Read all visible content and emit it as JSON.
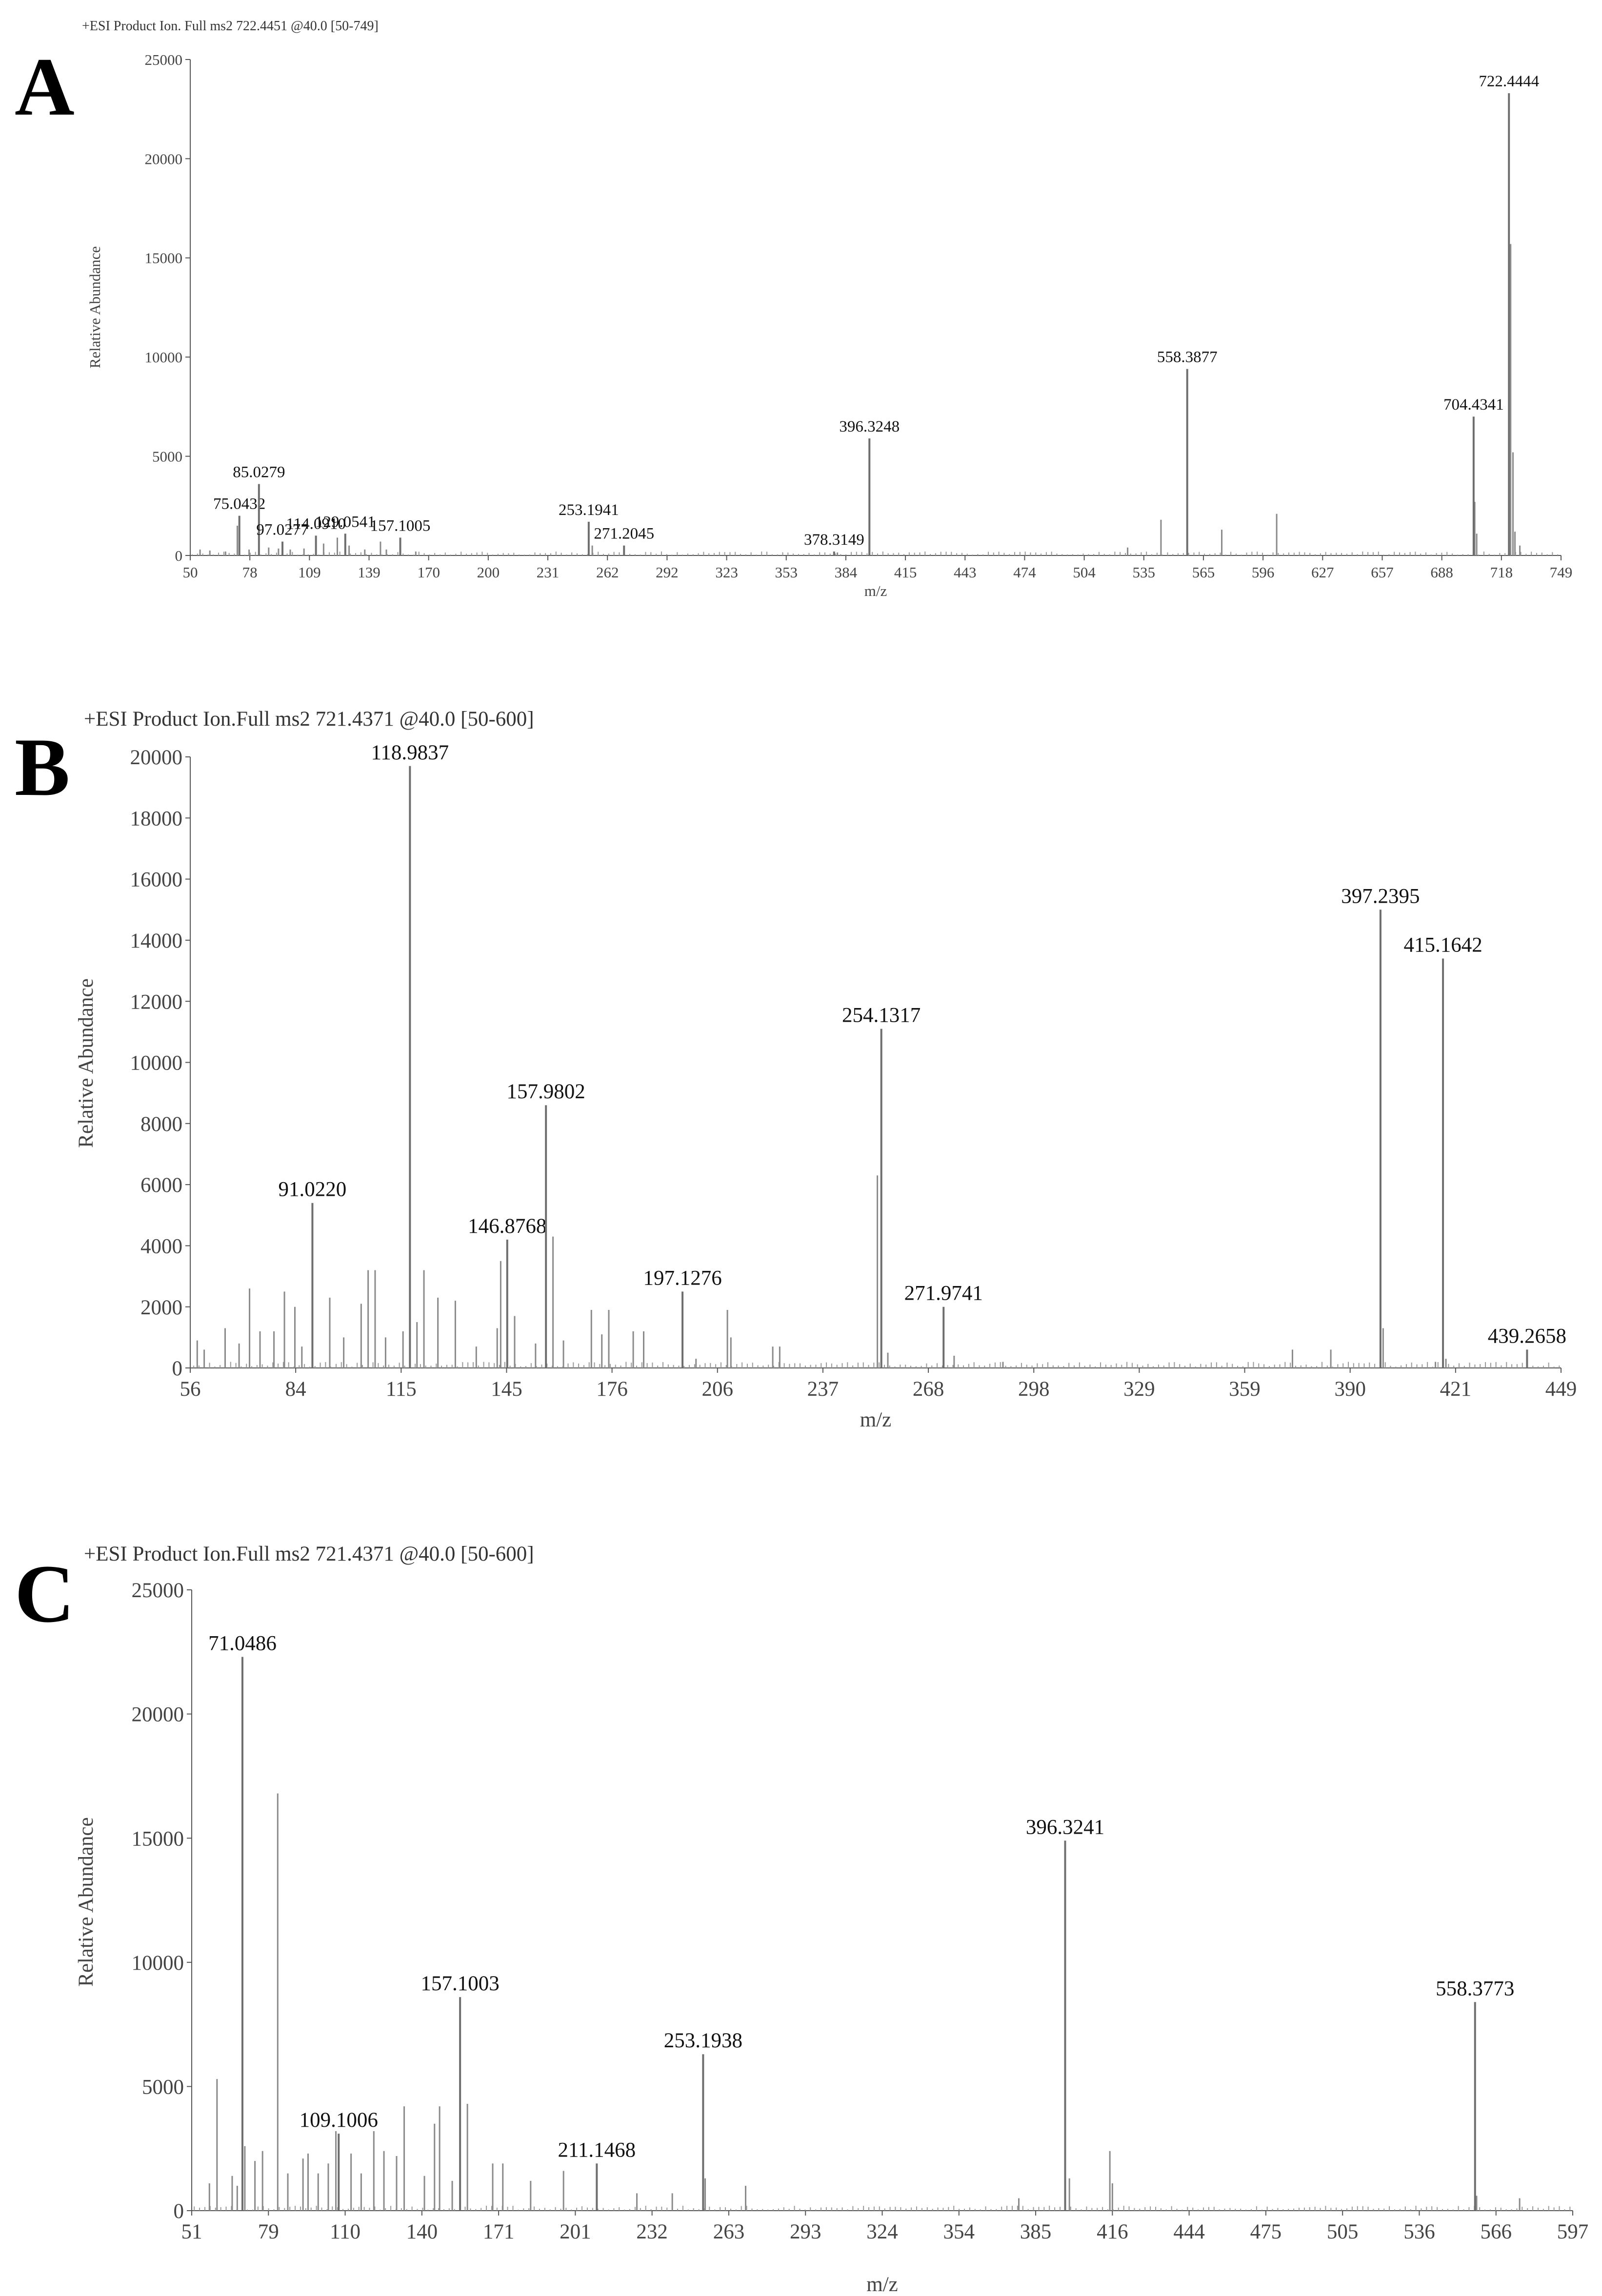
{
  "chart_data": [
    {
      "panel": "A",
      "type": "bar",
      "header": "+ESI Product Ion. Full ms2 722.4451 @40.0 [50-749]",
      "xlabel": "m/z",
      "ylabel": "Relative Abundance",
      "xlim": [
        50,
        749
      ],
      "ylim": [
        0,
        25000
      ],
      "xticks": [
        "50",
        "78",
        "109",
        "139",
        "170",
        "200",
        "231",
        "262",
        "292",
        "323",
        "353",
        "384",
        "415",
        "443",
        "474",
        "504",
        "535",
        "565",
        "596",
        "627",
        "657",
        "688",
        "718",
        "749"
      ],
      "yticks": [
        "0",
        "5000",
        "10000",
        "15000",
        "20000",
        "25000"
      ],
      "labeled_peaks": [
        {
          "mz": 75.0432,
          "label": "75.0432",
          "value": 2000
        },
        {
          "mz": 85.0279,
          "label": "85.0279",
          "value": 3600
        },
        {
          "mz": 97.0277,
          "label": "97.0277",
          "value": 700
        },
        {
          "mz": 114.091,
          "label": "114.0910",
          "value": 1000
        },
        {
          "mz": 129.0541,
          "label": "129.0541",
          "value": 1100
        },
        {
          "mz": 157.1005,
          "label": "157.1005",
          "value": 900
        },
        {
          "mz": 253.1941,
          "label": "253.1941",
          "value": 1700
        },
        {
          "mz": 271.2045,
          "label": "271.2045",
          "value": 500
        },
        {
          "mz": 378.3149,
          "label": "378.3149",
          "value": 200
        },
        {
          "mz": 396.3248,
          "label": "396.3248",
          "value": 5900
        },
        {
          "mz": 558.3877,
          "label": "558.3877",
          "value": 9400
        },
        {
          "mz": 704.4341,
          "label": "704.4341",
          "value": 7000
        },
        {
          "mz": 722.4444,
          "label": "722.4444",
          "value": 23300
        }
      ],
      "minor_peaks": [
        {
          "mz": 55,
          "value": 300
        },
        {
          "mz": 60,
          "value": 250
        },
        {
          "mz": 68,
          "value": 200
        },
        {
          "mz": 74,
          "value": 1500
        },
        {
          "mz": 80,
          "value": 300
        },
        {
          "mz": 90,
          "value": 400
        },
        {
          "mz": 95,
          "value": 350
        },
        {
          "mz": 101,
          "value": 300
        },
        {
          "mz": 108,
          "value": 350
        },
        {
          "mz": 118,
          "value": 600
        },
        {
          "mz": 125,
          "value": 900
        },
        {
          "mz": 131,
          "value": 500
        },
        {
          "mz": 139,
          "value": 300
        },
        {
          "mz": 147,
          "value": 700
        },
        {
          "mz": 150,
          "value": 300
        },
        {
          "mz": 165,
          "value": 200
        },
        {
          "mz": 255,
          "value": 500
        },
        {
          "mz": 380,
          "value": 150
        },
        {
          "mz": 528,
          "value": 400
        },
        {
          "mz": 545,
          "value": 1800
        },
        {
          "mz": 576,
          "value": 1300
        },
        {
          "mz": 604,
          "value": 2100
        },
        {
          "mz": 705,
          "value": 2700
        },
        {
          "mz": 706,
          "value": 1100
        },
        {
          "mz": 723.3,
          "value": 15700
        },
        {
          "mz": 724.5,
          "value": 5200
        },
        {
          "mz": 725.5,
          "value": 1200
        },
        {
          "mz": 728,
          "value": 500
        }
      ]
    },
    {
      "panel": "B",
      "type": "bar",
      "header": "+ESI Product Ion.Full ms2 721.4371 @40.0 [50-600]",
      "xlabel": "m/z",
      "ylabel": "Relative Abundance",
      "xlim": [
        56,
        449
      ],
      "ylim": [
        0,
        20000
      ],
      "xticks": [
        "56",
        "84",
        "115",
        "145",
        "176",
        "206",
        "237",
        "268",
        "298",
        "329",
        "359",
        "390",
        "421",
        "449"
      ],
      "yticks": [
        "0",
        "2000",
        "4000",
        "6000",
        "8000",
        "10000",
        "12000",
        "14000",
        "16000",
        "18000",
        "20000"
      ],
      "labeled_peaks": [
        {
          "mz": 91.022,
          "label": "91.0220",
          "value": 5400
        },
        {
          "mz": 118.9837,
          "label": "118.9837",
          "value": 19700
        },
        {
          "mz": 146.8768,
          "label": "146.8768",
          "value": 4200
        },
        {
          "mz": 157.9802,
          "label": "157.9802",
          "value": 8600
        },
        {
          "mz": 197.1276,
          "label": "197.1276",
          "value": 2500
        },
        {
          "mz": 254.1317,
          "label": "254.1317",
          "value": 11100
        },
        {
          "mz": 271.9741,
          "label": "271.9741",
          "value": 2000
        },
        {
          "mz": 397.2395,
          "label": "397.2395",
          "value": 15000
        },
        {
          "mz": 415.1642,
          "label": "415.1642",
          "value": 13400
        },
        {
          "mz": 439.2658,
          "label": "439.2658",
          "value": 600
        }
      ],
      "minor_peaks": [
        {
          "mz": 58,
          "value": 900
        },
        {
          "mz": 60,
          "value": 600
        },
        {
          "mz": 66,
          "value": 1300
        },
        {
          "mz": 70,
          "value": 800
        },
        {
          "mz": 73,
          "value": 2600
        },
        {
          "mz": 76,
          "value": 1200
        },
        {
          "mz": 80,
          "value": 1200
        },
        {
          "mz": 83,
          "value": 2500
        },
        {
          "mz": 86,
          "value": 2000
        },
        {
          "mz": 88,
          "value": 700
        },
        {
          "mz": 96,
          "value": 2300
        },
        {
          "mz": 100,
          "value": 1000
        },
        {
          "mz": 105,
          "value": 2100
        },
        {
          "mz": 107,
          "value": 3200
        },
        {
          "mz": 109,
          "value": 3200
        },
        {
          "mz": 112,
          "value": 1000
        },
        {
          "mz": 117,
          "value": 1200
        },
        {
          "mz": 121,
          "value": 1500
        },
        {
          "mz": 123,
          "value": 3200
        },
        {
          "mz": 127,
          "value": 2300
        },
        {
          "mz": 132,
          "value": 2200
        },
        {
          "mz": 138,
          "value": 700
        },
        {
          "mz": 144,
          "value": 1300
        },
        {
          "mz": 145,
          "value": 3500
        },
        {
          "mz": 149,
          "value": 1700
        },
        {
          "mz": 155,
          "value": 800
        },
        {
          "mz": 160,
          "value": 4300
        },
        {
          "mz": 163,
          "value": 900
        },
        {
          "mz": 171,
          "value": 1900
        },
        {
          "mz": 174,
          "value": 1100
        },
        {
          "mz": 176,
          "value": 1900
        },
        {
          "mz": 183,
          "value": 1200
        },
        {
          "mz": 186,
          "value": 1200
        },
        {
          "mz": 201,
          "value": 300
        },
        {
          "mz": 210,
          "value": 1900
        },
        {
          "mz": 211,
          "value": 1000
        },
        {
          "mz": 223,
          "value": 700
        },
        {
          "mz": 225,
          "value": 700
        },
        {
          "mz": 253,
          "value": 6300
        },
        {
          "mz": 256,
          "value": 500
        },
        {
          "mz": 275,
          "value": 400
        },
        {
          "mz": 289,
          "value": 200
        },
        {
          "mz": 372,
          "value": 600
        },
        {
          "mz": 383,
          "value": 600
        },
        {
          "mz": 398,
          "value": 1300
        },
        {
          "mz": 413,
          "value": 200
        },
        {
          "mz": 416,
          "value": 300
        }
      ]
    },
    {
      "panel": "C",
      "type": "bar",
      "header": "+ESI Product Ion.Full ms2 721.4371 @40.0 [50-600]",
      "xlabel": "m/z",
      "ylabel": "Relative Abundance",
      "xlim": [
        51,
        597
      ],
      "ylim": [
        0,
        25000
      ],
      "xticks": [
        "51",
        "79",
        "110",
        "140",
        "171",
        "201",
        "232",
        "263",
        "293",
        "324",
        "354",
        "385",
        "416",
        "444",
        "475",
        "505",
        "536",
        "566",
        "597"
      ],
      "yticks": [
        "0",
        "5000",
        "10000",
        "15000",
        "20000",
        "25000"
      ],
      "labeled_peaks": [
        {
          "mz": 71.0486,
          "label": "71.0486",
          "value": 22300
        },
        {
          "mz": 109.1006,
          "label": "109.1006",
          "value": 3100
        },
        {
          "mz": 157.1003,
          "label": "157.1003",
          "value": 8600
        },
        {
          "mz": 211.1468,
          "label": "211.1468",
          "value": 1900
        },
        {
          "mz": 253.1938,
          "label": "253.1938",
          "value": 6300
        },
        {
          "mz": 396.3241,
          "label": "396.3241",
          "value": 14900
        },
        {
          "mz": 558.3773,
          "label": "558.3773",
          "value": 8400
        }
      ],
      "minor_peaks": [
        {
          "mz": 58,
          "value": 1100
        },
        {
          "mz": 61,
          "value": 5300
        },
        {
          "mz": 67,
          "value": 1400
        },
        {
          "mz": 69,
          "value": 1000
        },
        {
          "mz": 72,
          "value": 2600
        },
        {
          "mz": 76,
          "value": 2000
        },
        {
          "mz": 79,
          "value": 2400
        },
        {
          "mz": 85,
          "value": 16800
        },
        {
          "mz": 89,
          "value": 1500
        },
        {
          "mz": 95,
          "value": 2100
        },
        {
          "mz": 97,
          "value": 2300
        },
        {
          "mz": 101,
          "value": 1500
        },
        {
          "mz": 105,
          "value": 1900
        },
        {
          "mz": 108,
          "value": 3200
        },
        {
          "mz": 114,
          "value": 2300
        },
        {
          "mz": 118,
          "value": 1500
        },
        {
          "mz": 123,
          "value": 3200
        },
        {
          "mz": 127,
          "value": 2400
        },
        {
          "mz": 132,
          "value": 2200
        },
        {
          "mz": 135,
          "value": 4200
        },
        {
          "mz": 143,
          "value": 1400
        },
        {
          "mz": 147,
          "value": 3500
        },
        {
          "mz": 149,
          "value": 4200
        },
        {
          "mz": 154,
          "value": 1200
        },
        {
          "mz": 160,
          "value": 4300
        },
        {
          "mz": 170,
          "value": 1900
        },
        {
          "mz": 174,
          "value": 1900
        },
        {
          "mz": 185,
          "value": 1200
        },
        {
          "mz": 198,
          "value": 1600
        },
        {
          "mz": 227,
          "value": 700
        },
        {
          "mz": 241,
          "value": 700
        },
        {
          "mz": 254,
          "value": 1300
        },
        {
          "mz": 270,
          "value": 1000
        },
        {
          "mz": 378,
          "value": 500
        },
        {
          "mz": 398,
          "value": 1300
        },
        {
          "mz": 414,
          "value": 2400
        },
        {
          "mz": 415,
          "value": 1100
        },
        {
          "mz": 559,
          "value": 600
        },
        {
          "mz": 576,
          "value": 500
        }
      ]
    }
  ]
}
